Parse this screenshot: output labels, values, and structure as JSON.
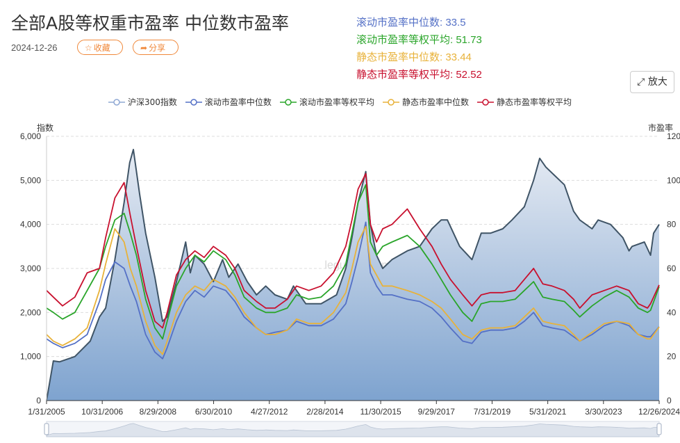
{
  "header": {
    "title": "全部A股等权重市盈率 中位数市盈率",
    "date": "2024-12-26",
    "favorite_label": "收藏",
    "share_label": "分享",
    "expand_label": "放大"
  },
  "stats": [
    {
      "label": "滚动市盈率中位数: ",
      "value": "33.5",
      "color": "#5470c6"
    },
    {
      "label": "滚动市盈率等权平均: ",
      "value": "51.73",
      "color": "#2aa52a"
    },
    {
      "label": "静态市盈率中位数: ",
      "value": "33.44",
      "color": "#e8b23a"
    },
    {
      "label": "静态市盈率等权平均: ",
      "value": "52.52",
      "color": "#c8102e"
    }
  ],
  "watermark": "legulegu.com",
  "chart_data": {
    "type": "line",
    "title": "全部A股等权重市盈率 中位数市盈率",
    "left_axis_label": "指数",
    "right_axis_label": "市盈率",
    "left_ylim": [
      0,
      6000
    ],
    "right_ylim": [
      0,
      120
    ],
    "left_ticks": [
      "0",
      "1,000",
      "2,000",
      "3,000",
      "4,000",
      "5,000",
      "6,000"
    ],
    "right_ticks": [
      "0",
      "20",
      "40",
      "60",
      "80",
      "100",
      "120"
    ],
    "x_tick_labels": [
      "1/31/2005",
      "10/31/2006",
      "8/29/2008",
      "6/30/2010",
      "4/27/2012",
      "2/28/2014",
      "11/30/2015",
      "9/29/2017",
      "7/31/2019",
      "5/31/2021",
      "3/30/2023",
      "12/26/2024"
    ],
    "x_range": [
      2005.08,
      2024.98
    ],
    "grid": true,
    "legend_position": "top-center",
    "series": [
      {
        "name": "沪深300指数",
        "axis": "left",
        "color": "#3f5466",
        "area": true,
        "x": [
          2005.08,
          2005.3,
          2005.5,
          2006.0,
          2006.5,
          2006.8,
          2007.0,
          2007.3,
          2007.6,
          2007.78,
          2007.9,
          2008.1,
          2008.3,
          2008.6,
          2008.85,
          2009.0,
          2009.3,
          2009.6,
          2009.75,
          2009.9,
          2010.2,
          2010.5,
          2010.8,
          2011.0,
          2011.3,
          2011.6,
          2011.9,
          2012.2,
          2012.5,
          2012.9,
          2013.1,
          2013.5,
          2014.0,
          2014.5,
          2014.8,
          2015.0,
          2015.2,
          2015.45,
          2015.6,
          2015.8,
          2016.0,
          2016.3,
          2016.8,
          2017.2,
          2017.6,
          2017.9,
          2018.1,
          2018.5,
          2018.9,
          2019.2,
          2019.5,
          2019.9,
          2020.2,
          2020.6,
          2020.9,
          2021.1,
          2021.3,
          2021.6,
          2021.9,
          2022.2,
          2022.4,
          2022.8,
          2023.0,
          2023.4,
          2023.8,
          2024.0,
          2024.1,
          2024.5,
          2024.7,
          2024.8,
          2024.98
        ],
        "values": [
          0,
          900,
          880,
          1000,
          1350,
          1900,
          2100,
          3200,
          4500,
          5400,
          5700,
          4700,
          3800,
          2800,
          1800,
          1900,
          2700,
          3600,
          2900,
          3300,
          3100,
          2700,
          3200,
          2800,
          3100,
          2700,
          2400,
          2600,
          2400,
          2300,
          2600,
          2200,
          2200,
          2400,
          3000,
          3700,
          4500,
          5200,
          4000,
          3300,
          3000,
          3200,
          3400,
          3500,
          3900,
          4100,
          4100,
          3500,
          3200,
          3800,
          3800,
          3900,
          4100,
          4400,
          5000,
          5500,
          5300,
          5100,
          4900,
          4300,
          4100,
          3900,
          4100,
          4000,
          3700,
          3400,
          3500,
          3600,
          3300,
          3800,
          4000
        ]
      },
      {
        "name": "滚动市盈率中位数",
        "axis": "right",
        "color": "#5470c6",
        "x": [
          2005.08,
          2005.3,
          2005.6,
          2006.0,
          2006.4,
          2006.8,
          2007.0,
          2007.3,
          2007.6,
          2007.8,
          2008.0,
          2008.3,
          2008.6,
          2008.85,
          2009.0,
          2009.3,
          2009.6,
          2009.9,
          2010.2,
          2010.5,
          2010.9,
          2011.2,
          2011.5,
          2011.9,
          2012.2,
          2012.5,
          2012.9,
          2013.2,
          2013.6,
          2014.0,
          2014.4,
          2014.8,
          2015.0,
          2015.2,
          2015.45,
          2015.6,
          2015.8,
          2016.0,
          2016.3,
          2016.8,
          2017.2,
          2017.6,
          2017.9,
          2018.2,
          2018.6,
          2018.9,
          2019.2,
          2019.5,
          2019.9,
          2020.3,
          2020.6,
          2020.9,
          2021.2,
          2021.5,
          2021.9,
          2022.2,
          2022.4,
          2022.8,
          2023.2,
          2023.6,
          2024.0,
          2024.3,
          2024.6,
          2024.7,
          2024.98
        ],
        "values": [
          28,
          26,
          24,
          26,
          30,
          45,
          55,
          63,
          60,
          52,
          45,
          30,
          22,
          19,
          24,
          36,
          45,
          50,
          47,
          52,
          50,
          45,
          38,
          33,
          30,
          31,
          32,
          36,
          34,
          34,
          37,
          44,
          54,
          65,
          81,
          58,
          52,
          48,
          48,
          46,
          45,
          42,
          38,
          33,
          27,
          26,
          31,
          32,
          32,
          33,
          36,
          40,
          34,
          33,
          32,
          29,
          27,
          30,
          34,
          36,
          34,
          30,
          29,
          29,
          33.5
        ]
      },
      {
        "name": "滚动市盈率等权平均",
        "axis": "right",
        "color": "#2aa52a",
        "x": [
          2005.08,
          2005.3,
          2005.6,
          2006.0,
          2006.4,
          2006.8,
          2007.0,
          2007.3,
          2007.6,
          2007.8,
          2008.0,
          2008.3,
          2008.6,
          2008.85,
          2009.0,
          2009.3,
          2009.6,
          2009.9,
          2010.2,
          2010.5,
          2010.9,
          2011.2,
          2011.5,
          2011.9,
          2012.2,
          2012.5,
          2012.9,
          2013.2,
          2013.6,
          2014.0,
          2014.4,
          2014.8,
          2015.0,
          2015.2,
          2015.45,
          2015.6,
          2015.8,
          2016.0,
          2016.3,
          2016.8,
          2017.2,
          2017.6,
          2017.9,
          2018.2,
          2018.6,
          2018.9,
          2019.2,
          2019.5,
          2019.9,
          2020.3,
          2020.6,
          2020.9,
          2021.2,
          2021.5,
          2021.9,
          2022.2,
          2022.4,
          2022.8,
          2023.2,
          2023.6,
          2024.0,
          2024.3,
          2024.6,
          2024.7,
          2024.98
        ],
        "values": [
          42,
          40,
          37,
          40,
          50,
          60,
          70,
          82,
          85,
          76,
          66,
          46,
          33,
          28,
          36,
          52,
          60,
          66,
          63,
          68,
          64,
          57,
          47,
          42,
          40,
          40,
          42,
          48,
          46,
          47,
          52,
          62,
          76,
          90,
          98,
          72,
          66,
          70,
          72,
          75,
          70,
          62,
          55,
          48,
          40,
          36,
          44,
          45,
          45,
          46,
          50,
          54,
          47,
          46,
          45,
          41,
          38,
          43,
          47,
          50,
          47,
          42,
          40,
          41,
          51.73
        ]
      },
      {
        "name": "静态市盈率中位数",
        "axis": "right",
        "color": "#e8b23a",
        "x": [
          2005.08,
          2005.3,
          2005.6,
          2006.0,
          2006.4,
          2006.8,
          2007.0,
          2007.3,
          2007.6,
          2007.8,
          2008.0,
          2008.3,
          2008.6,
          2008.85,
          2009.0,
          2009.3,
          2009.6,
          2009.9,
          2010.2,
          2010.5,
          2010.9,
          2011.2,
          2011.5,
          2011.9,
          2012.2,
          2012.5,
          2012.9,
          2013.2,
          2013.6,
          2014.0,
          2014.4,
          2014.8,
          2015.0,
          2015.2,
          2015.45,
          2015.6,
          2015.8,
          2016.0,
          2016.3,
          2016.8,
          2017.2,
          2017.6,
          2017.9,
          2018.2,
          2018.6,
          2018.9,
          2019.2,
          2019.5,
          2019.9,
          2020.3,
          2020.6,
          2020.9,
          2021.2,
          2021.5,
          2021.9,
          2022.2,
          2022.4,
          2022.8,
          2023.2,
          2023.6,
          2024.0,
          2024.3,
          2024.6,
          2024.7,
          2024.98
        ],
        "values": [
          30,
          27,
          25,
          28,
          33,
          50,
          62,
          78,
          72,
          60,
          52,
          36,
          25,
          21,
          27,
          40,
          48,
          52,
          50,
          55,
          52,
          47,
          40,
          33,
          30,
          30,
          32,
          37,
          35,
          35,
          40,
          49,
          60,
          72,
          79,
          62,
          57,
          52,
          52,
          50,
          48,
          45,
          42,
          37,
          30,
          28,
          32,
          33,
          33,
          34,
          38,
          42,
          36,
          35,
          34,
          30,
          27,
          31,
          35,
          36,
          35,
          30,
          28,
          28,
          33.44
        ]
      },
      {
        "name": "静态市盈率等权平均",
        "axis": "right",
        "color": "#c8102e",
        "x": [
          2005.08,
          2005.3,
          2005.6,
          2006.0,
          2006.4,
          2006.8,
          2007.0,
          2007.3,
          2007.6,
          2007.8,
          2008.0,
          2008.3,
          2008.6,
          2008.85,
          2009.0,
          2009.3,
          2009.6,
          2009.9,
          2010.2,
          2010.5,
          2010.9,
          2011.2,
          2011.5,
          2011.9,
          2012.2,
          2012.5,
          2012.9,
          2013.2,
          2013.6,
          2014.0,
          2014.4,
          2014.8,
          2015.0,
          2015.2,
          2015.45,
          2015.6,
          2015.8,
          2016.0,
          2016.3,
          2016.8,
          2017.2,
          2017.6,
          2017.9,
          2018.2,
          2018.6,
          2018.9,
          2019.2,
          2019.5,
          2019.9,
          2020.3,
          2020.6,
          2020.9,
          2021.2,
          2021.5,
          2021.9,
          2022.2,
          2022.4,
          2022.8,
          2023.2,
          2023.6,
          2024.0,
          2024.3,
          2024.6,
          2024.7,
          2024.98
        ],
        "values": [
          50,
          47,
          43,
          47,
          58,
          60,
          74,
          92,
          99,
          84,
          70,
          50,
          36,
          33,
          40,
          57,
          64,
          68,
          65,
          70,
          66,
          60,
          50,
          45,
          42,
          42,
          46,
          52,
          50,
          52,
          58,
          70,
          82,
          96,
          103,
          80,
          72,
          78,
          80,
          87,
          78,
          70,
          62,
          55,
          48,
          43,
          48,
          49,
          49,
          50,
          55,
          60,
          53,
          52,
          50,
          46,
          42,
          48,
          50,
          52,
          50,
          44,
          42,
          44,
          52.52
        ]
      }
    ]
  }
}
